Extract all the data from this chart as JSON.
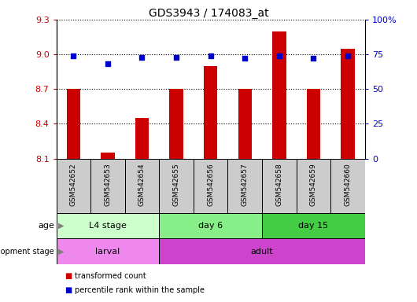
{
  "title": "GDS3943 / 174083_at",
  "samples": [
    "GSM542652",
    "GSM542653",
    "GSM542654",
    "GSM542655",
    "GSM542656",
    "GSM542657",
    "GSM542658",
    "GSM542659",
    "GSM542660"
  ],
  "transformed_counts": [
    8.7,
    8.15,
    8.45,
    8.7,
    8.9,
    8.7,
    9.2,
    8.7,
    9.05
  ],
  "percentile_ranks": [
    74,
    68,
    73,
    73,
    74,
    72,
    74,
    72,
    74
  ],
  "ylim_left": [
    8.1,
    9.3
  ],
  "ylim_right": [
    0,
    100
  ],
  "yticks_left": [
    8.1,
    8.4,
    8.7,
    9.0,
    9.3
  ],
  "yticks_right": [
    0,
    25,
    50,
    75,
    100
  ],
  "bar_color": "#cc0000",
  "dot_color": "#0000cc",
  "age_groups": [
    {
      "label": "L4 stage",
      "start": 0,
      "end": 3,
      "color": "#ccffcc"
    },
    {
      "label": "day 6",
      "start": 3,
      "end": 6,
      "color": "#88ee88"
    },
    {
      "label": "day 15",
      "start": 6,
      "end": 9,
      "color": "#44cc44"
    }
  ],
  "dev_groups": [
    {
      "label": "larval",
      "start": 0,
      "end": 3,
      "color": "#ee88ee"
    },
    {
      "label": "adult",
      "start": 3,
      "end": 9,
      "color": "#cc44cc"
    }
  ],
  "legend_items": [
    {
      "label": "transformed count",
      "color": "#cc0000"
    },
    {
      "label": "percentile rank within the sample",
      "color": "#0000cc"
    }
  ],
  "axis_label_color": "#cc0000",
  "right_axis_color": "#0000cc",
  "sample_box_color": "#cccccc",
  "sample_box_linecolor": "#000000"
}
